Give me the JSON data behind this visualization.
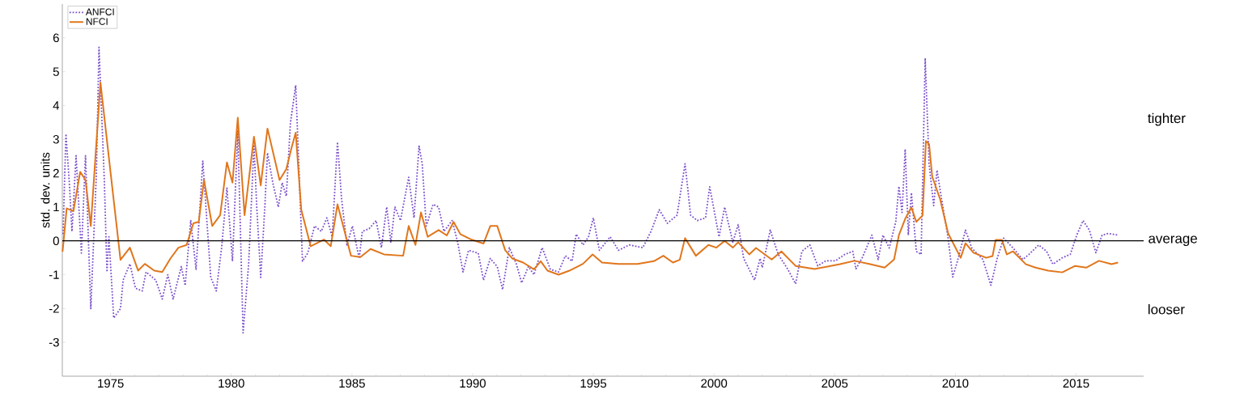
{
  "chart_data": {
    "type": "line",
    "ylabel": "std. dev. units",
    "xlim": [
      1973.0,
      2017.8
    ],
    "ylim": [
      -4,
      7
    ],
    "xticks": [
      1975,
      1980,
      1985,
      1990,
      1995,
      2000,
      2005,
      2010,
      2015
    ],
    "yticks": [
      -3,
      -2,
      -1,
      0,
      1,
      2,
      3,
      4,
      5,
      6
    ],
    "legend": "top left",
    "grid": false,
    "ref_lines": [
      {
        "axis": "y",
        "value": 0,
        "label": "average",
        "color": "#000000"
      }
    ],
    "annotations": [
      "tighter",
      "looser"
    ],
    "series": [
      {
        "name": "ANFCI",
        "color": "#7b4fc9",
        "line_style": "dotted",
        "x": [
          1973.03,
          1973.15,
          1973.29,
          1973.4,
          1973.57,
          1973.79,
          1973.96,
          1974.18,
          1974.41,
          1974.52,
          1974.74,
          1974.85,
          1974.93,
          1975.13,
          1975.41,
          1975.52,
          1975.8,
          1976.03,
          1976.31,
          1976.47,
          1976.87,
          1977.14,
          1977.37,
          1977.59,
          1977.93,
          1978.09,
          1978.32,
          1978.54,
          1978.82,
          1979.15,
          1979.38,
          1979.6,
          1979.82,
          1980.05,
          1980.27,
          1980.49,
          1980.72,
          1980.94,
          1981.05,
          1981.22,
          1981.39,
          1981.5,
          1981.72,
          1981.95,
          1982.11,
          1982.28,
          1982.45,
          1982.67,
          1982.95,
          1983.17,
          1983.45,
          1983.73,
          1983.96,
          1984.18,
          1984.4,
          1984.57,
          1984.79,
          1985.02,
          1985.3,
          1985.43,
          1985.71,
          1986.0,
          1986.22,
          1986.44,
          1986.61,
          1986.78,
          1987.01,
          1987.35,
          1987.57,
          1987.78,
          1987.91,
          1988.08,
          1988.36,
          1988.59,
          1988.81,
          1989.15,
          1989.38,
          1989.6,
          1989.83,
          1990.23,
          1990.45,
          1990.73,
          1991.02,
          1991.24,
          1991.52,
          1991.81,
          1992.03,
          1992.31,
          1992.54,
          1992.88,
          1993.22,
          1993.56,
          1993.84,
          1994.12,
          1994.29,
          1994.57,
          1994.8,
          1995.0,
          1995.25,
          1995.7,
          1996.04,
          1996.49,
          1997.05,
          1997.39,
          1997.73,
          1998.07,
          1998.47,
          1998.8,
          1999.03,
          1999.31,
          1999.65,
          1999.82,
          2000.21,
          2000.44,
          2000.78,
          2001.0,
          2001.23,
          2001.68,
          2001.91,
          2002.0,
          2002.33,
          2002.66,
          2003.05,
          2003.38,
          2003.64,
          2003.97,
          2004.3,
          2004.63,
          2005.03,
          2005.42,
          2005.75,
          2005.88,
          2006.14,
          2006.54,
          2006.8,
          2007.0,
          2007.26,
          2007.53,
          2007.66,
          2007.79,
          2007.92,
          2008.05,
          2008.18,
          2008.38,
          2008.58,
          2008.75,
          2008.91,
          2009.1,
          2009.24,
          2009.43,
          2009.7,
          2009.89,
          2010.09,
          2010.42,
          2010.68,
          2011.14,
          2011.47,
          2011.74,
          2012.0,
          2012.39,
          2012.79,
          2013.05,
          2013.45,
          2013.78,
          2014.04,
          2014.43,
          2014.76,
          2015.03,
          2015.29,
          2015.55,
          2015.82,
          2016.08,
          2016.34,
          2016.74
        ],
        "values": [
          0.2,
          3.16,
          1.72,
          0.28,
          2.52,
          -0.36,
          2.52,
          -2.0,
          1.96,
          5.72,
          1.8,
          -0.92,
          0.12,
          -2.28,
          -2.0,
          -1.16,
          -0.68,
          -1.4,
          -1.48,
          -0.92,
          -1.16,
          -1.72,
          -1.0,
          -1.72,
          -0.76,
          -1.32,
          0.6,
          -0.84,
          2.36,
          -1.08,
          -1.48,
          -0.2,
          1.56,
          -0.6,
          3.24,
          -2.72,
          -0.68,
          2.84,
          1.08,
          -1.08,
          1.0,
          2.6,
          1.72,
          1.0,
          1.72,
          1.32,
          3.48,
          4.6,
          -0.6,
          -0.36,
          0.44,
          0.28,
          0.68,
          0.12,
          2.92,
          1.24,
          -0.12,
          0.44,
          -0.52,
          0.28,
          0.36,
          0.6,
          -0.2,
          1.0,
          -0.04,
          1.0,
          0.6,
          1.88,
          0.68,
          2.8,
          2.28,
          0.44,
          1.08,
          1.0,
          0.28,
          0.6,
          -0.04,
          -0.92,
          -0.28,
          -0.36,
          -1.16,
          -0.52,
          -0.76,
          -1.44,
          -0.2,
          -0.68,
          -1.24,
          -0.76,
          -1.0,
          -0.2,
          -0.84,
          -0.92,
          -0.44,
          -0.6,
          0.2,
          -0.12,
          0.12,
          0.68,
          -0.28,
          0.12,
          -0.28,
          -0.12,
          -0.2,
          0.28,
          0.92,
          0.52,
          0.76,
          2.28,
          0.76,
          0.6,
          0.68,
          1.6,
          0.12,
          1.0,
          -0.04,
          0.48,
          -0.52,
          -1.16,
          -0.52,
          -0.79,
          0.32,
          -0.4,
          -0.83,
          -1.27,
          -0.31,
          -0.12,
          -0.74,
          -0.59,
          -0.59,
          -0.4,
          -0.31,
          -0.83,
          -0.5,
          0.17,
          -0.55,
          0.17,
          -0.21,
          0.56,
          1.61,
          0.84,
          2.71,
          0.17,
          1.42,
          -0.31,
          -0.4,
          5.4,
          2.28,
          1.04,
          2.09,
          1.23,
          0.08,
          -1.07,
          -0.59,
          0.32,
          -0.21,
          -0.55,
          -1.31,
          -0.5,
          0.08,
          -0.21,
          -0.55,
          -0.4,
          -0.12,
          -0.31,
          -0.69,
          -0.5,
          -0.4,
          0.17,
          0.6,
          0.32,
          -0.35,
          0.17,
          0.22,
          0.17
        ]
      },
      {
        "name": "NFCI",
        "color": "#e0761c",
        "line_style": "solid",
        "x": [
          1973.01,
          1973.18,
          1973.46,
          1973.74,
          1973.96,
          1974.18,
          1974.58,
          1974.97,
          1975.41,
          1975.8,
          1976.14,
          1976.42,
          1976.81,
          1977.14,
          1977.48,
          1977.81,
          1978.15,
          1978.43,
          1978.65,
          1978.87,
          1979.21,
          1979.54,
          1979.82,
          1980.05,
          1980.27,
          1980.55,
          1980.94,
          1981.22,
          1981.5,
          1982.0,
          1982.28,
          1982.5,
          1982.67,
          1982.9,
          1983.29,
          1983.84,
          1984.12,
          1984.4,
          1984.96,
          1985.35,
          1985.77,
          1986.33,
          1987.12,
          1987.35,
          1987.63,
          1987.86,
          1988.14,
          1988.59,
          1988.93,
          1989.21,
          1989.49,
          1989.94,
          1990.45,
          1990.73,
          1991.02,
          1991.35,
          1991.64,
          1992.09,
          1992.54,
          1992.82,
          1993.1,
          1993.56,
          1994.01,
          1994.57,
          1994.97,
          1995.36,
          1996.04,
          1996.83,
          1997.51,
          1997.9,
          1998.3,
          1998.58,
          1998.8,
          1999.25,
          1999.77,
          2000.1,
          2000.44,
          2000.78,
          2001.0,
          2001.46,
          2001.74,
          2002.39,
          2002.79,
          2003.38,
          2004.17,
          2005.22,
          2005.82,
          2006.47,
          2007.07,
          2007.46,
          2007.66,
          2007.92,
          2008.18,
          2008.38,
          2008.64,
          2008.78,
          2008.91,
          2009.04,
          2009.37,
          2009.7,
          2010.22,
          2010.42,
          2010.75,
          2011.28,
          2011.54,
          2011.67,
          2011.93,
          2012.13,
          2012.39,
          2012.92,
          2013.32,
          2013.84,
          2014.43,
          2014.96,
          2015.42,
          2015.95,
          2016.47,
          2016.74
        ],
        "values": [
          -0.32,
          0.96,
          0.88,
          2.04,
          1.8,
          0.44,
          4.68,
          2.2,
          -0.56,
          -0.2,
          -0.88,
          -0.68,
          -0.88,
          -0.92,
          -0.52,
          -0.2,
          -0.12,
          0.52,
          0.56,
          1.8,
          0.44,
          0.76,
          2.32,
          1.72,
          3.64,
          0.76,
          3.08,
          1.64,
          3.32,
          1.8,
          2.12,
          2.76,
          3.2,
          0.92,
          -0.16,
          0.04,
          -0.16,
          1.08,
          -0.44,
          -0.48,
          -0.24,
          -0.4,
          -0.44,
          0.44,
          -0.12,
          0.84,
          0.12,
          0.32,
          0.16,
          0.56,
          0.2,
          0.04,
          -0.08,
          0.44,
          0.44,
          -0.28,
          -0.52,
          -0.64,
          -0.84,
          -0.6,
          -0.88,
          -1.0,
          -0.88,
          -0.68,
          -0.4,
          -0.64,
          -0.68,
          -0.68,
          -0.6,
          -0.44,
          -0.64,
          -0.56,
          0.08,
          -0.44,
          -0.12,
          -0.2,
          0.0,
          -0.2,
          -0.04,
          -0.4,
          -0.21,
          -0.55,
          -0.31,
          -0.74,
          -0.83,
          -0.69,
          -0.59,
          -0.69,
          -0.79,
          -0.55,
          0.17,
          0.65,
          0.99,
          0.56,
          0.75,
          2.95,
          2.86,
          1.9,
          1.23,
          0.22,
          -0.5,
          -0.07,
          -0.35,
          -0.5,
          -0.45,
          0.03,
          0.03,
          -0.4,
          -0.31,
          -0.69,
          -0.79,
          -0.88,
          -0.93,
          -0.74,
          -0.79,
          -0.59,
          -0.69,
          -0.64
        ]
      }
    ]
  }
}
